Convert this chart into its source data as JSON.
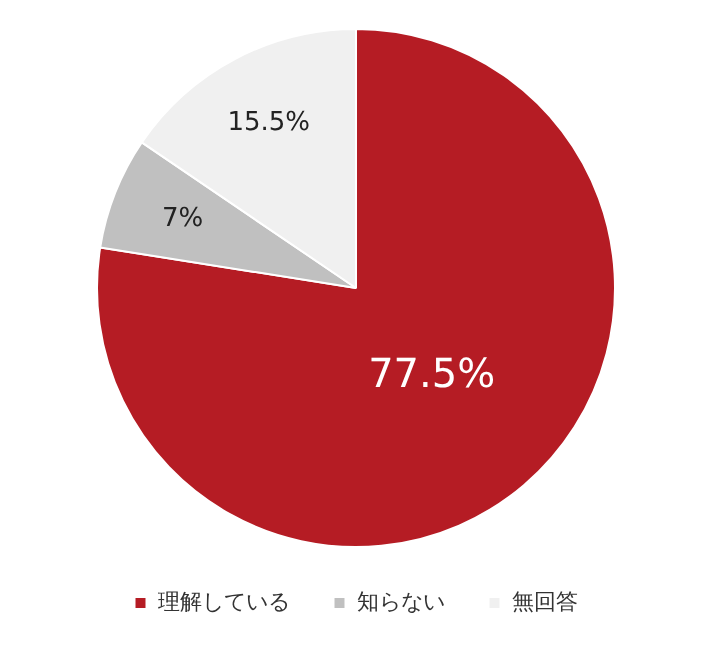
{
  "chart_data": {
    "type": "pie",
    "categories": [
      "理解している",
      "知らない",
      "無回答"
    ],
    "values": [
      77.5,
      7,
      15.5
    ],
    "colors": [
      "#b51c24",
      "#c0c0c0",
      "#f0f0f0"
    ],
    "value_labels": [
      "77.5%",
      "7%",
      "15.5%"
    ],
    "legend": "bottom"
  }
}
